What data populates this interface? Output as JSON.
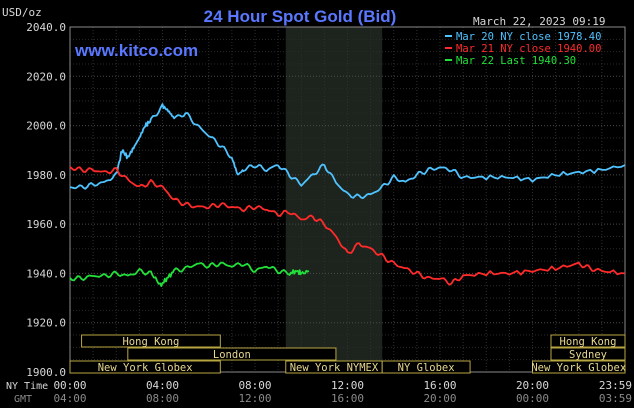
{
  "chart_data": {
    "type": "line",
    "title": "24 Hour Spot Gold (Bid)",
    "watermark": "www.kitco.com",
    "y_unit_label": "USD/oz",
    "date_label": "March 22, 2023 09:19",
    "ylim": [
      1900,
      2040
    ],
    "yticks": [
      1900,
      1920,
      1940,
      1960,
      1980,
      2000,
      2020,
      2040
    ],
    "ytick_labels": [
      "1900.0",
      "1920.0",
      "1940.0",
      "1960.0",
      "1980.0",
      "2000.0",
      "2020.0",
      "2040.0"
    ],
    "xlim": [
      0,
      24
    ],
    "x_axis_rows": [
      {
        "name": "NY Time",
        "labels": [
          "00:00",
          "04:00",
          "08:00",
          "12:00",
          "16:00",
          "20:00",
          "23:59"
        ],
        "color": "#d8d8d8"
      },
      {
        "name": "GMT",
        "labels": [
          "04:00",
          "08:00",
          "12:00",
          "16:00",
          "20:00",
          "00:00",
          "03:59"
        ],
        "color": "#8a8a8a"
      }
    ],
    "grid": true,
    "legend_position": "top-right",
    "shaded_session": {
      "label": "New York NYMEX",
      "start": 9.33,
      "end": 13.5
    },
    "sessions": [
      {
        "label": "Hong Kong",
        "row": 0,
        "start": 0.5,
        "end": 6.5
      },
      {
        "label": "Hong Kong",
        "row": 0,
        "start": 20.8,
        "end": 24
      },
      {
        "label": "London",
        "row": 1,
        "start": 2.5,
        "end": 11.5
      },
      {
        "label": "Sydney",
        "row": 1,
        "start": 20.8,
        "end": 24
      },
      {
        "label": "New York Globex",
        "row": 2,
        "start": 0,
        "end": 6.5
      },
      {
        "label": "New York NYMEX",
        "row": 2,
        "start": 9.33,
        "end": 13.5
      },
      {
        "label": "NY Globex",
        "row": 2,
        "start": 13.5,
        "end": 17.3
      },
      {
        "label": "New York Globex",
        "row": 2,
        "start": 20.0,
        "end": 24
      }
    ],
    "series": [
      {
        "name": "Mar 20 NY close 1978.40",
        "color": "#4fc3ff",
        "values": [
          [
            0,
            1975
          ],
          [
            0.5,
            1975
          ],
          [
            1,
            1976
          ],
          [
            1.5,
            1977
          ],
          [
            2,
            1980
          ],
          [
            2.25,
            1990
          ],
          [
            2.5,
            1987
          ],
          [
            2.75,
            1991
          ],
          [
            3,
            1995
          ],
          [
            3.25,
            2000
          ],
          [
            3.5,
            2002
          ],
          [
            4,
            2008
          ],
          [
            4.25,
            2006
          ],
          [
            4.5,
            2003
          ],
          [
            5,
            2005
          ],
          [
            5.5,
            2000
          ],
          [
            6,
            1996
          ],
          [
            6.5,
            1992
          ],
          [
            7,
            1987
          ],
          [
            7.25,
            1980
          ],
          [
            7.5,
            1982
          ],
          [
            8,
            1984
          ],
          [
            8.5,
            1982
          ],
          [
            9,
            1984
          ],
          [
            9.5,
            1980
          ],
          [
            10,
            1976
          ],
          [
            10.5,
            1980
          ],
          [
            11,
            1984
          ],
          [
            11.5,
            1977
          ],
          [
            12,
            1972
          ],
          [
            12.5,
            1971
          ],
          [
            13,
            1972
          ],
          [
            13.5,
            1975
          ],
          [
            14,
            1979
          ],
          [
            14.5,
            1977
          ],
          [
            15,
            1980
          ],
          [
            15.5,
            1982
          ],
          [
            16,
            1983
          ],
          [
            16.5,
            1982
          ],
          [
            17,
            1979
          ],
          [
            18,
            1979
          ],
          [
            19,
            1979
          ],
          [
            20,
            1978
          ],
          [
            21,
            1980
          ],
          [
            22,
            1981
          ],
          [
            23,
            1982
          ],
          [
            24,
            1984
          ]
        ]
      },
      {
        "name": "Mar 21 NY close 1940.00",
        "color": "#ff2a2a",
        "values": [
          [
            0,
            1983
          ],
          [
            0.5,
            1982
          ],
          [
            1,
            1982
          ],
          [
            1.5,
            1981
          ],
          [
            2,
            1982
          ],
          [
            2.5,
            1978
          ],
          [
            3,
            1975
          ],
          [
            3.5,
            1977
          ],
          [
            4,
            1975
          ],
          [
            4.5,
            1970
          ],
          [
            5,
            1968
          ],
          [
            5.5,
            1967
          ],
          [
            6,
            1967
          ],
          [
            6.5,
            1968
          ],
          [
            7,
            1967
          ],
          [
            7.5,
            1966
          ],
          [
            8,
            1967
          ],
          [
            8.5,
            1966
          ],
          [
            9,
            1964
          ],
          [
            9.5,
            1965
          ],
          [
            10,
            1962
          ],
          [
            10.5,
            1963
          ],
          [
            11,
            1960
          ],
          [
            11.5,
            1955
          ],
          [
            12,
            1948
          ],
          [
            12.5,
            1952
          ],
          [
            13,
            1950
          ],
          [
            13.5,
            1947
          ],
          [
            14,
            1944
          ],
          [
            14.5,
            1942
          ],
          [
            15,
            1940
          ],
          [
            15.5,
            1938
          ],
          [
            16,
            1938
          ],
          [
            16.5,
            1936
          ],
          [
            17,
            1939
          ],
          [
            18,
            1940
          ],
          [
            19,
            1940
          ],
          [
            20,
            1941
          ],
          [
            21,
            1942
          ],
          [
            22,
            1944
          ],
          [
            22.5,
            1942
          ],
          [
            23,
            1941
          ],
          [
            24,
            1940
          ]
        ]
      },
      {
        "name": "Mar 22 Last 1940.30",
        "color": "#22e03a",
        "values": [
          [
            0,
            1938
          ],
          [
            0.5,
            1938
          ],
          [
            1,
            1939
          ],
          [
            1.5,
            1939
          ],
          [
            2,
            1940
          ],
          [
            2.5,
            1939
          ],
          [
            3,
            1941
          ],
          [
            3.5,
            1940
          ],
          [
            3.9,
            1935
          ],
          [
            4.2,
            1938
          ],
          [
            4.5,
            1941
          ],
          [
            5,
            1942
          ],
          [
            5.5,
            1944
          ],
          [
            6,
            1943
          ],
          [
            6.5,
            1944
          ],
          [
            7,
            1943
          ],
          [
            7.5,
            1944
          ],
          [
            8,
            1941
          ],
          [
            8.5,
            1943
          ],
          [
            9,
            1941
          ],
          [
            9.5,
            1940
          ],
          [
            9.8,
            1941
          ],
          [
            10,
            1940
          ],
          [
            10.33,
            1941
          ]
        ]
      }
    ]
  }
}
